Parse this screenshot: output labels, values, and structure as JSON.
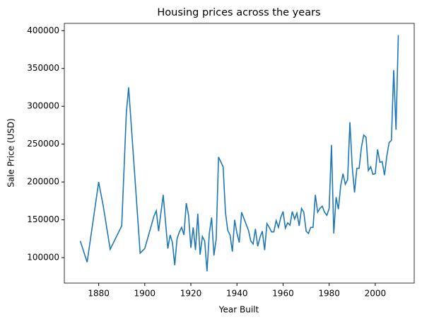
{
  "chart_data": {
    "type": "line",
    "title": "Housing prices across the years",
    "x_label": "Year Built",
    "y_label": "Sale Price (USD)",
    "x": [
      1872,
      1875,
      1880,
      1882,
      1885,
      1890,
      1892,
      1893,
      1898,
      1900,
      1904,
      1905,
      1906,
      1908,
      1910,
      1911,
      1912,
      1913,
      1914,
      1915,
      1916,
      1917,
      1918,
      1919,
      1920,
      1921,
      1922,
      1923,
      1924,
      1925,
      1926,
      1927,
      1928,
      1929,
      1930,
      1931,
      1932,
      1934,
      1935,
      1936,
      1937,
      1938,
      1939,
      1940,
      1941,
      1942,
      1945,
      1946,
      1947,
      1948,
      1949,
      1950,
      1951,
      1952,
      1953,
      1954,
      1955,
      1956,
      1957,
      1958,
      1959,
      1960,
      1961,
      1962,
      1963,
      1964,
      1965,
      1966,
      1967,
      1968,
      1969,
      1970,
      1971,
      1972,
      1973,
      1974,
      1975,
      1976,
      1977,
      1978,
      1979,
      1980,
      1981,
      1982,
      1983,
      1984,
      1985,
      1986,
      1987,
      1988,
      1989,
      1990,
      1991,
      1992,
      1993,
      1994,
      1995,
      1996,
      1997,
      1998,
      1999,
      2000,
      2001,
      2002,
      2003,
      2004,
      2005,
      2006,
      2007,
      2008,
      2009,
      2010
    ],
    "series": [
      {
        "name": "SalePrice",
        "color": "#1f77b4",
        "values": [
          122000,
          94000,
          200000,
          168000,
          111000,
          142000,
          291000,
          325000,
          106000,
          112000,
          155000,
          162000,
          135000,
          183000,
          112000,
          130000,
          120000,
          90000,
          125000,
          134000,
          140000,
          130000,
          172000,
          156000,
          113000,
          140000,
          110000,
          158000,
          104000,
          128000,
          122000,
          82000,
          132000,
          153000,
          103000,
          125000,
          233000,
          220000,
          160000,
          136000,
          130000,
          108000,
          150000,
          132000,
          120000,
          160000,
          136000,
          122000,
          118000,
          138000,
          115000,
          127000,
          135000,
          110000,
          145000,
          140000,
          134000,
          134000,
          149000,
          140000,
          153000,
          161000,
          139000,
          146000,
          143000,
          161000,
          151000,
          159000,
          142000,
          165000,
          160000,
          135000,
          132000,
          140000,
          140000,
          183000,
          160000,
          165000,
          168000,
          160000,
          156000,
          165000,
          249000,
          132000,
          180000,
          164000,
          195000,
          211000,
          197000,
          203000,
          279000,
          220000,
          186000,
          218000,
          218000,
          246000,
          262000,
          259000,
          215000,
          220000,
          210000,
          211000,
          243000,
          226000,
          227000,
          209000,
          234000,
          252000,
          255000,
          348000,
          269000,
          394000
        ]
      }
    ],
    "xlim": [
      1865.1,
      2016.9
    ],
    "ylim": [
      66400,
      409600
    ],
    "xticks": [
      1880,
      1900,
      1920,
      1940,
      1960,
      1980,
      2000
    ],
    "yticks": [
      100000,
      150000,
      200000,
      250000,
      300000,
      350000,
      400000
    ]
  }
}
